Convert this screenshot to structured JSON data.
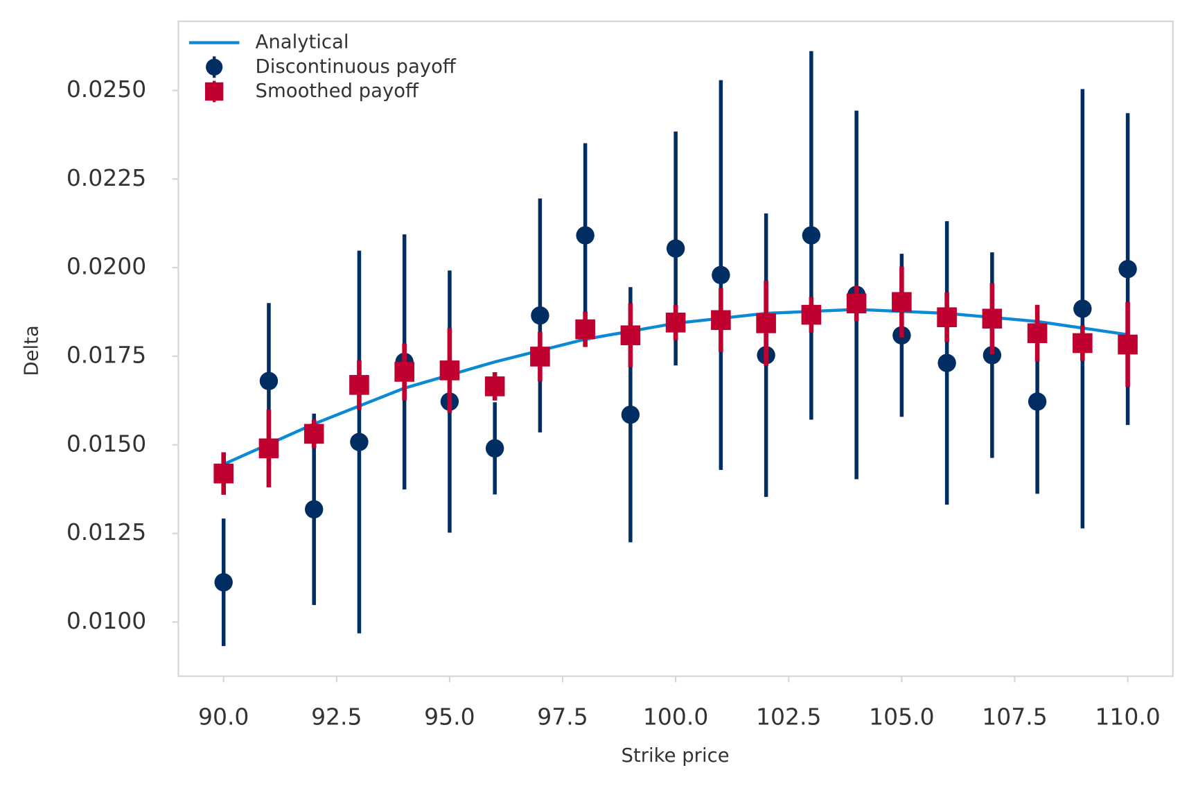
{
  "chart_data": {
    "type": "errorbar",
    "xlabel": "Strike price",
    "ylabel": "Delta",
    "xlim": [
      89,
      111
    ],
    "ylim": [
      0.00847,
      0.02695
    ],
    "xticks": [
      {
        "value": 90,
        "label": "90.0"
      },
      {
        "value": 92.5,
        "label": "92.5"
      },
      {
        "value": 95,
        "label": "95.0"
      },
      {
        "value": 97.5,
        "label": "97.5"
      },
      {
        "value": 100,
        "label": "100.0"
      },
      {
        "value": 102.5,
        "label": "102.5"
      },
      {
        "value": 105,
        "label": "105.0"
      },
      {
        "value": 107.5,
        "label": "107.5"
      },
      {
        "value": 110,
        "label": "110.0"
      }
    ],
    "yticks": [
      {
        "value": 0.01,
        "label": "0.0100"
      },
      {
        "value": 0.0125,
        "label": "0.0125"
      },
      {
        "value": 0.015,
        "label": "0.0150"
      },
      {
        "value": 0.0175,
        "label": "0.0175"
      },
      {
        "value": 0.02,
        "label": "0.0200"
      },
      {
        "value": 0.0225,
        "label": "0.0225"
      },
      {
        "value": 0.025,
        "label": "0.0250"
      }
    ],
    "legend": "upper left",
    "x": [
      90,
      91,
      92,
      93,
      94,
      95,
      96,
      97,
      98,
      99,
      100,
      101,
      102,
      103,
      104,
      105,
      106,
      107,
      108,
      109,
      110
    ],
    "series": [
      {
        "name": "Analytical",
        "kind": "line",
        "color": "#0a8ad6",
        "x": [
          90,
          92,
          94,
          96,
          98,
          100,
          102,
          104,
          106,
          108,
          110
        ],
        "values": [
          0.01445,
          0.01559,
          0.0166,
          0.01734,
          0.01798,
          0.01843,
          0.01871,
          0.01882,
          0.01871,
          0.01848,
          0.01811
        ]
      },
      {
        "name": "Discontinuous payoff",
        "kind": "circle",
        "color": "#002d62",
        "values": [
          0.01112,
          0.0168,
          0.01318,
          0.01508,
          0.01734,
          0.01622,
          0.0149,
          0.01865,
          0.02091,
          0.01585,
          0.02054,
          0.01979,
          0.01753,
          0.02091,
          0.01923,
          0.01809,
          0.01731,
          0.01753,
          0.01622,
          0.01884,
          0.01996
        ],
        "errors": [
          0.0018,
          0.0022,
          0.0027,
          0.0054,
          0.0036,
          0.0037,
          0.0013,
          0.0033,
          0.0026,
          0.0036,
          0.0033,
          0.0055,
          0.004,
          0.0052,
          0.0052,
          0.0023,
          0.004,
          0.0029,
          0.0026,
          0.0062,
          0.0044
        ]
      },
      {
        "name": "Smoothed payoff",
        "kind": "square",
        "color": "#c0002f",
        "values": [
          0.01419,
          0.0149,
          0.01531,
          0.01669,
          0.01706,
          0.0171,
          0.01665,
          0.01749,
          0.01826,
          0.01809,
          0.01845,
          0.01852,
          0.01843,
          0.01867,
          0.01899,
          0.01903,
          0.0186,
          0.01856,
          0.01815,
          0.01787,
          0.01783
        ],
        "errors": [
          0.0006,
          0.0011,
          0.0004,
          0.0007,
          0.0008,
          0.0012,
          0.0004,
          0.0007,
          0.0005,
          0.0009,
          0.0005,
          0.0009,
          0.0012,
          0.0005,
          0.0005,
          0.001,
          0.0007,
          0.001,
          0.0008,
          0.0005,
          0.0012
        ]
      }
    ]
  }
}
